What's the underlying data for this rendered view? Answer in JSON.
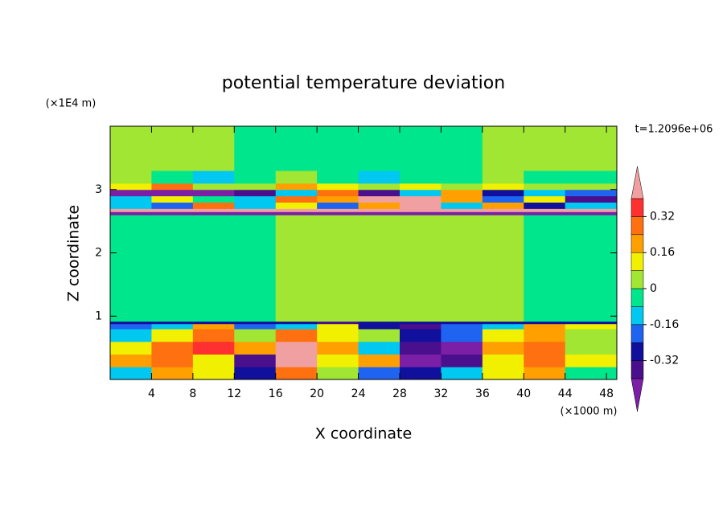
{
  "chart_data": {
    "type": "contour",
    "title": "potential temperature deviation",
    "ylabel_units": "(×1E4 m)",
    "xlabel_units": "(×1000 m)",
    "time_label": "t=1.2096e+06",
    "xlabel": "X coordinate",
    "ylabel": "Z coordinate",
    "xlim": [
      0,
      49
    ],
    "ylim": [
      0,
      4
    ],
    "xticks": [
      4,
      8,
      12,
      16,
      20,
      24,
      28,
      32,
      36,
      40,
      44,
      48
    ],
    "yticks": [
      1,
      2,
      3
    ],
    "x_edges": [
      0,
      4,
      8,
      12,
      16,
      20,
      24,
      28,
      32,
      36,
      40,
      44,
      49
    ],
    "y_edges": [
      0,
      0.2,
      0.4,
      0.6,
      0.8,
      0.88,
      0.92,
      2.6,
      2.65,
      2.7,
      2.8,
      2.9,
      3.0,
      3.1,
      3.3,
      4.0
    ],
    "z": [
      [
        -0.1,
        0.2,
        0.1,
        -0.3,
        0.3,
        0.05,
        -0.2,
        -0.3,
        -0.1,
        0.1,
        0.2,
        -0.05
      ],
      [
        0.2,
        0.3,
        0.1,
        -0.35,
        0.45,
        0.1,
        0.2,
        -0.45,
        -0.35,
        0.15,
        0.25,
        0.1
      ],
      [
        0.1,
        0.3,
        0.35,
        0.2,
        0.4,
        0.2,
        -0.1,
        -0.35,
        -0.45,
        0.2,
        0.3,
        0.05
      ],
      [
        -0.1,
        0.15,
        0.3,
        0.05,
        0.25,
        0.1,
        0.05,
        -0.3,
        -0.2,
        0.1,
        0.2,
        0.05
      ],
      [
        -0.2,
        -0.15,
        0.2,
        -0.2,
        -0.1,
        0.1,
        -0.3,
        -0.4,
        -0.2,
        -0.1,
        0.2,
        0.1
      ],
      [
        -0.3,
        -0.3,
        -0.3,
        -0.3,
        -0.3,
        -0.35,
        -0.3,
        -0.3,
        -0.3,
        -0.3,
        -0.3,
        -0.3
      ],
      [
        -0.04,
        -0.04,
        -0.04,
        -0.04,
        0.04,
        0.04,
        0.04,
        0.04,
        0.04,
        0.04,
        -0.04,
        -0.04
      ],
      [
        -0.45,
        -0.45,
        -0.45,
        -0.45,
        -0.45,
        -0.45,
        -0.45,
        -0.45,
        -0.45,
        -0.45,
        -0.45,
        -0.45
      ],
      [
        0.45,
        0.45,
        0.45,
        0.45,
        0.45,
        0.45,
        0.45,
        0.45,
        0.45,
        0.45,
        0.45,
        0.45
      ],
      [
        -0.1,
        -0.2,
        0.3,
        -0.1,
        0.1,
        -0.2,
        0.2,
        0.45,
        -0.1,
        0.2,
        -0.3,
        -0.1
      ],
      [
        -0.1,
        0.1,
        -0.05,
        -0.1,
        0.3,
        0.2,
        0.45,
        0.45,
        0.2,
        -0.2,
        0.1,
        -0.35
      ],
      [
        -0.45,
        -0.45,
        -0.45,
        -0.35,
        -0.1,
        0.3,
        -0.35,
        -0.1,
        0.2,
        -0.3,
        -0.1,
        -0.2
      ],
      [
        0.1,
        0.3,
        0.05,
        0.05,
        0.2,
        0.1,
        0.05,
        0.1,
        0.05,
        0.1,
        0.05,
        0.05
      ],
      [
        0.05,
        -0.04,
        -0.1,
        -0.04,
        0.05,
        -0.04,
        -0.1,
        -0.04,
        -0.04,
        0.05,
        -0.04,
        -0.04
      ],
      [
        0.04,
        0.04,
        0.04,
        -0.04,
        -0.04,
        -0.04,
        -0.04,
        -0.04,
        -0.04,
        0.04,
        0.04,
        0.04
      ]
    ],
    "levels": [
      -0.4,
      -0.32,
      -0.24,
      -0.16,
      -0.08,
      0,
      0.08,
      0.16,
      0.24,
      0.32,
      0.4
    ],
    "colors": [
      "#7a1fa6",
      "#4a0f8c",
      "#10109c",
      "#1e64f0",
      "#00c8f0",
      "#00e68c",
      "#a0e632",
      "#f0f000",
      "#ffa000",
      "#ff7010",
      "#ff3030",
      "#f0a0a0"
    ],
    "colorbar_ticks": [
      0.32,
      0.16,
      0,
      -0.16,
      -0.32
    ]
  }
}
